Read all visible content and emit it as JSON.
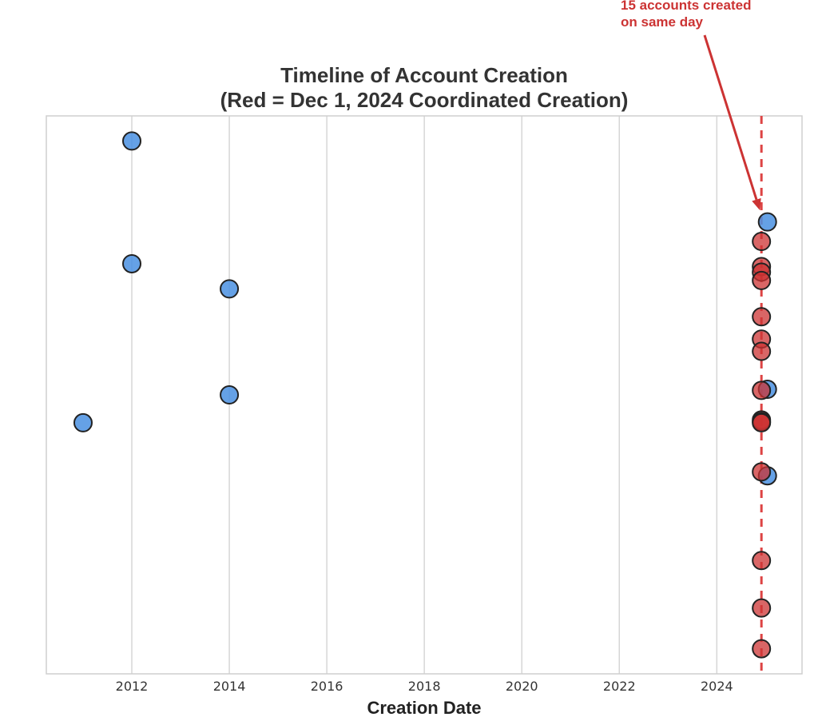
{
  "chart_data": {
    "type": "scatter",
    "title": "Timeline of Account Creation",
    "subtitle": "(Red = Dec 1, 2024 Coordinated Creation)",
    "xlabel": "Creation Date",
    "ylabel": "",
    "xlim": [
      "2010-04-01",
      "2025-10-01"
    ],
    "x_ticks": [
      "2012",
      "2014",
      "2016",
      "2018",
      "2020",
      "2022",
      "2024"
    ],
    "y_axis_visible": false,
    "grid": "vertical",
    "reference_line": {
      "date": "2024-12-01",
      "style": "dashed",
      "color": "#dd4444"
    },
    "annotation": {
      "line1": "15 accounts created",
      "line2": "on same day",
      "color": "#cc3333"
    },
    "colors": {
      "regular": "#4a90e2",
      "coordinated": "#cc3333"
    },
    "series": [
      {
        "name": "regular",
        "points": [
          {
            "x": "2012-01-01",
            "y": 0.955
          },
          {
            "x": "2025-01-15",
            "y": 0.81
          },
          {
            "x": "2012-01-01",
            "y": 0.735
          },
          {
            "x": "2014-01-01",
            "y": 0.69
          },
          {
            "x": "2014-01-01",
            "y": 0.5
          },
          {
            "x": "2011-01-01",
            "y": 0.45
          },
          {
            "x": "2025-01-15",
            "y": 0.51
          },
          {
            "x": "2025-01-15",
            "y": 0.355
          }
        ]
      },
      {
        "name": "coordinated",
        "date": "2024-12-01",
        "y": [
          0.775,
          0.73,
          0.72,
          0.705,
          0.64,
          0.6,
          0.578,
          0.508,
          0.455,
          0.452,
          0.45,
          0.362,
          0.203,
          0.118,
          0.045
        ]
      }
    ]
  }
}
